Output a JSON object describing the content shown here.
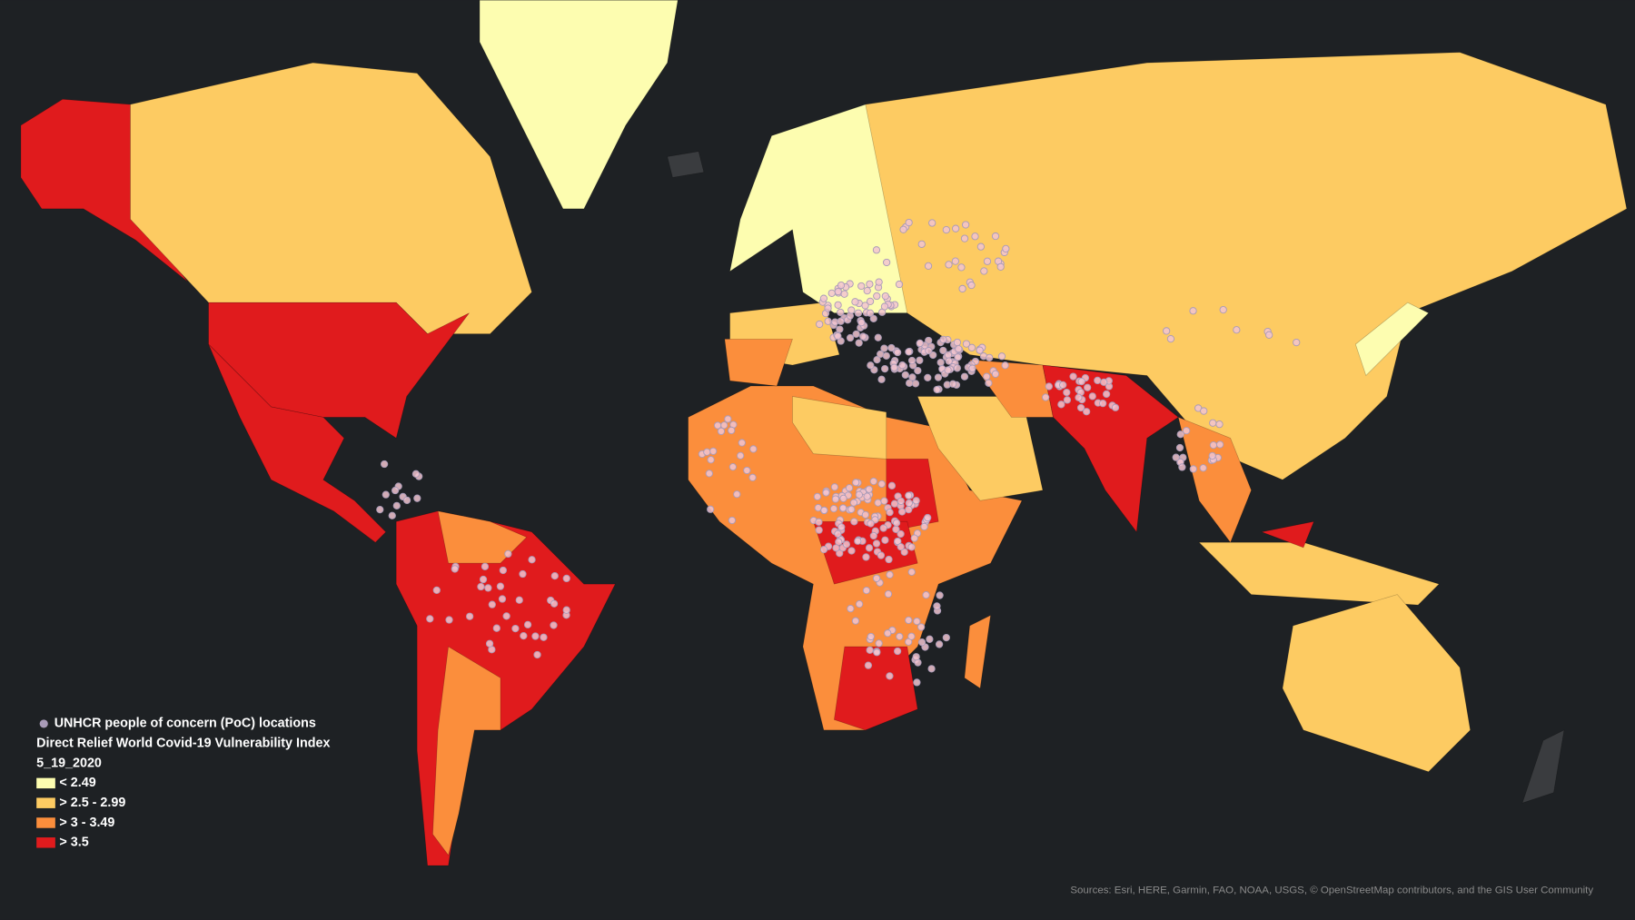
{
  "legend": {
    "points_label": "UNHCR people of concern (PoC) locations",
    "title": "Direct Relief World Covid-19 Vulnerability Index",
    "subtitle": "5_19_2020",
    "classes": [
      {
        "label": "< 2.49",
        "color": "#fdfdb0"
      },
      {
        "label": "> 2.5 - 2.99",
        "color": "#fdcb62"
      },
      {
        "label": "> 3 - 3.49",
        "color": "#fb8e3c"
      },
      {
        "label": "> 3.5",
        "color": "#e01b1d"
      }
    ]
  },
  "attribution": "Sources: Esri, HERE, Garmin, FAO, NOAA, USGS, © OpenStreetMap contributors, and the GIS User Community"
}
